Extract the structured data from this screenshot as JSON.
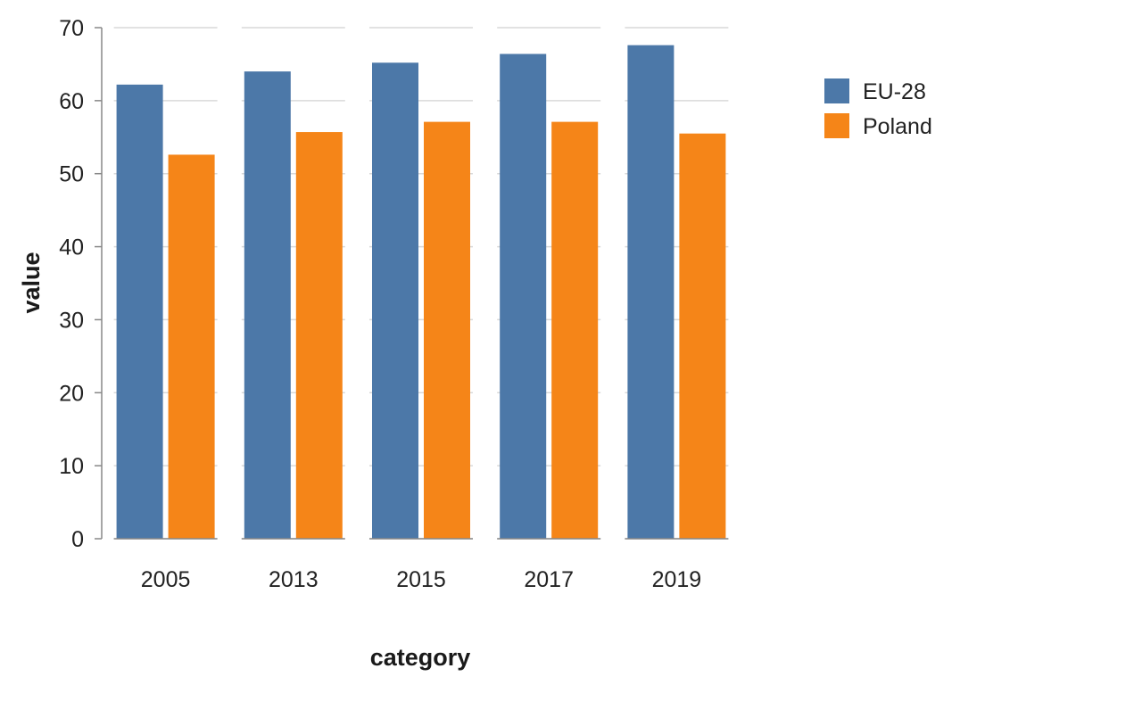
{
  "chart_data": {
    "type": "bar",
    "title": "",
    "xlabel": "category",
    "ylabel": "value",
    "categories": [
      "2005",
      "2013",
      "2015",
      "2017",
      "2019"
    ],
    "ylim": [
      0,
      70
    ],
    "yticks": [
      0,
      10,
      20,
      30,
      40,
      50,
      60,
      70
    ],
    "grid": true,
    "legend_position": "top-right",
    "series": [
      {
        "name": "EU-28",
        "color": "#4c78a8",
        "values": [
          62.2,
          64.0,
          65.2,
          66.4,
          67.6
        ]
      },
      {
        "name": "Poland",
        "color": "#f58518",
        "values": [
          52.6,
          55.7,
          57.1,
          57.1,
          55.5
        ]
      }
    ]
  }
}
